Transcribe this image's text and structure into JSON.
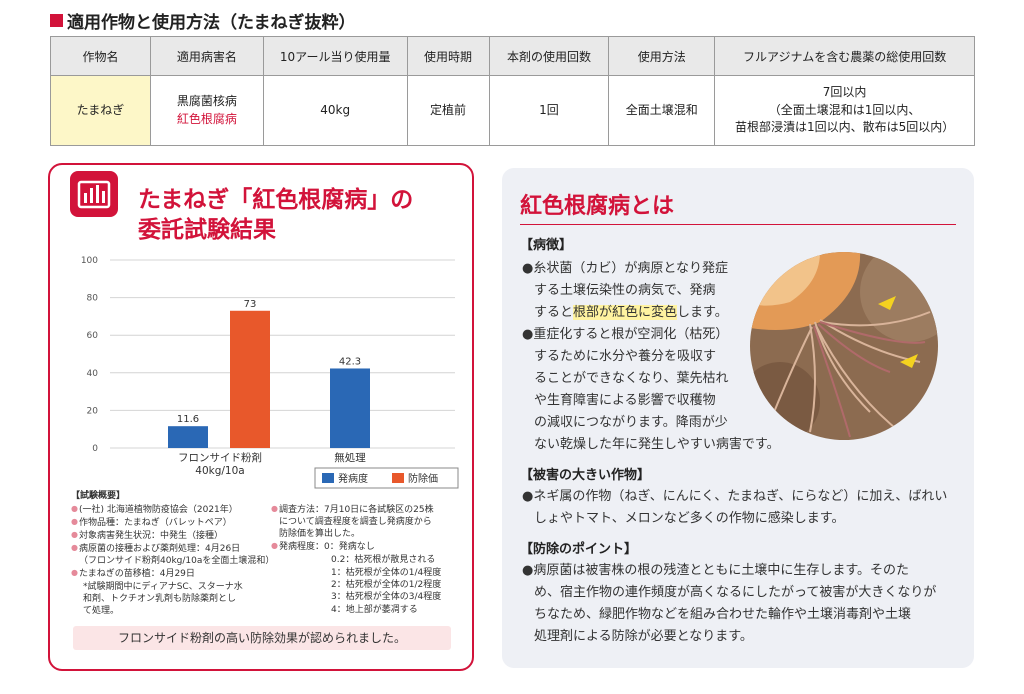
{
  "section_title": "適用作物と使用方法（たまねぎ抜粋）",
  "usage_table": {
    "headers": [
      "作物名",
      "適用病害名",
      "10アール当り使用量",
      "使用時期",
      "本剤の使用回数",
      "使用方法",
      "フルアジナムを含む農薬の総使用回数"
    ],
    "row": {
      "crop": "たまねぎ",
      "disease_1": "黒腐菌核病",
      "disease_2": "紅色根腐病",
      "amount": "40kg",
      "timing": "定植前",
      "count": "1回",
      "method": "全面土壌混和",
      "total_1": "7回以内",
      "total_2": "（全面土壌混和は1回以内、",
      "total_3": "苗根部浸漬は1回以内、散布は5回以内）"
    }
  },
  "left_card": {
    "title_1": "たまねぎ「紅色根腐病」の",
    "title_2": "委託試験結果",
    "badge_icon": "bar-chart-icon"
  },
  "chart_data": {
    "type": "bar",
    "categories": [
      "フロンサイド粉剤\n40kg/10a",
      "無処理"
    ],
    "series": [
      {
        "name": "発病度",
        "color": "#2a68b5",
        "values": [
          11.6,
          42.3
        ]
      },
      {
        "name": "防除価",
        "color": "#e8582b",
        "values": [
          73,
          null
        ]
      }
    ],
    "ylim": [
      0,
      100
    ],
    "yticks": [
      0,
      20,
      40,
      60,
      80,
      100
    ],
    "legend_position": "bottom-right"
  },
  "summary": {
    "heading": "【試験概要】",
    "left_items": [
      "(一社) 北海道植物防疫協会（2021年）",
      "作物品種：たまねぎ（バレットペア）",
      "対象病害発生状況：中発生（接種）",
      "病原菌の接種および薬剤処理：4月26日",
      "たまねぎの苗移植：4月29日"
    ],
    "left_item4_note": "（フロンサイド粉剤40kg/10aを全面土壌混和）",
    "left_note_1": "*試験期間中にディアナSC、スターナ水",
    "left_note_2": "和剤、トクチオン乳剤も防除薬剤とし",
    "left_note_3": "て処理。",
    "right_item1_a": "調査方法：7月10日に各試験区の25株",
    "right_item1_b": "について調査程度を調査し発病度から",
    "right_item1_c": "防除価を算出した。",
    "right_item2": "発病程度：0：発病なし",
    "degrees": [
      "0.2：枯死根が散見される",
      "1：枯死根が全体の1/4程度",
      "2：枯死根が全体の1/2程度",
      "3：枯死根が全体の3/4程度",
      "4：地上部が萎凋する"
    ]
  },
  "conclusion": "フロンサイド粉剤の高い防除効果が認められました。",
  "right_card": {
    "title": "紅色根腐病とは",
    "symptoms_heading": "【病徴】",
    "s1_l1": "●糸状菌（カビ）が病原となり発症",
    "s1_l2": "する土壌伝染性の病気で、発病",
    "s1_l3a": "すると",
    "s1_l3hl": "根部が紅色に変色",
    "s1_l3b": "します。",
    "s2_l1": "●重症化すると根が空洞化（枯死）",
    "s2_l2": "するために水分や養分を吸収す",
    "s2_l3": "ることができなくなり、葉先枯れ",
    "s2_l4": "や生育障害による影響で収穫物",
    "s2_l5": "の減収につながります。降雨が少",
    "s2_l6": "ない乾燥した年に発生しやすい病害です。",
    "damage_heading": "【被害の大きい作物】",
    "d_l1": "●ネギ属の作物（ねぎ、にんにく、たまねぎ、にらなど）に加え、ばれい",
    "d_l2": "しょやトマト、メロンなど多くの作物に感染します。",
    "control_heading": "【防除のポイント】",
    "c_l1": "●病原菌は被害株の根の残渣とともに土壌中に生存します。そのた",
    "c_l2": "め、宿主作物の連作頻度が高くなるにしたがって被害が大きくなりが",
    "c_l3": "ちなため、緑肥作物などを組み合わせた輪作や土壌消毒剤や土壌",
    "c_l4": "処理剤による防除が必要となります。"
  }
}
